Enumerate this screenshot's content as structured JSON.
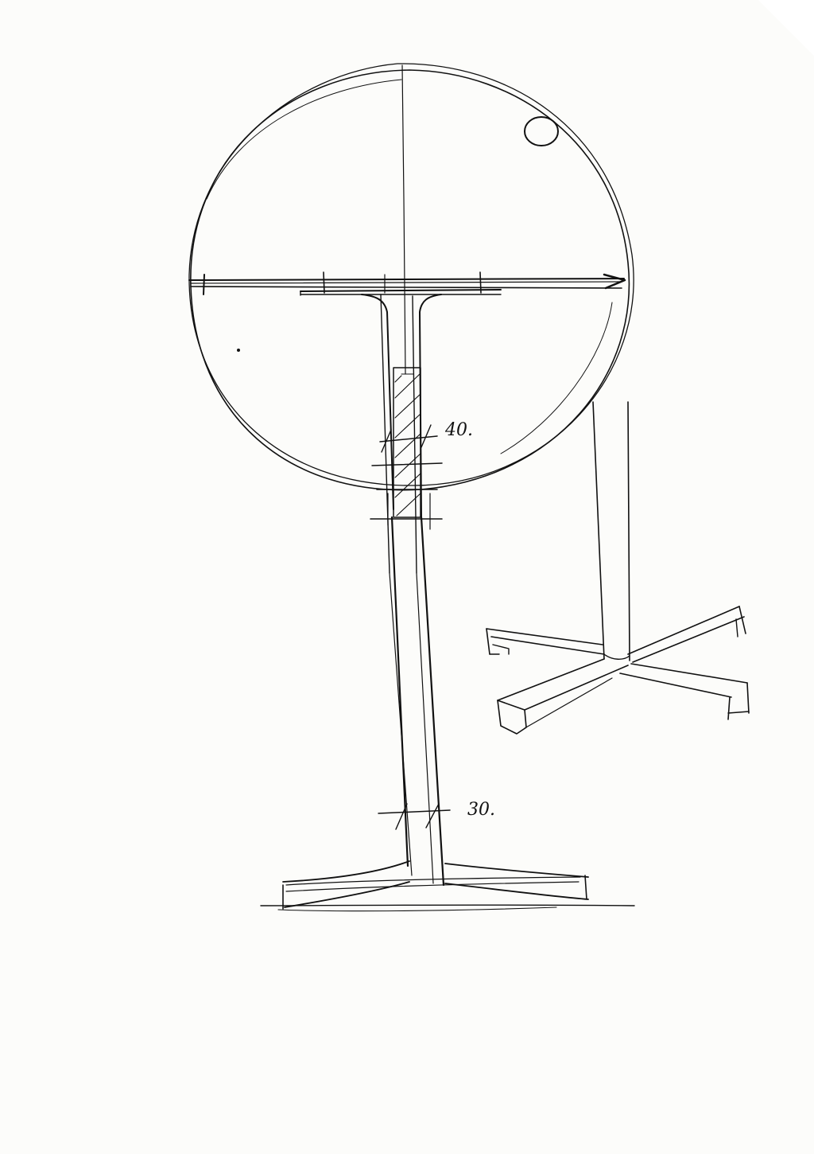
{
  "sketch": {
    "dimension_top": "40.",
    "dimension_bottom": "30."
  },
  "colors": {
    "ink": "#111111",
    "paper": "#fcfcfa"
  }
}
